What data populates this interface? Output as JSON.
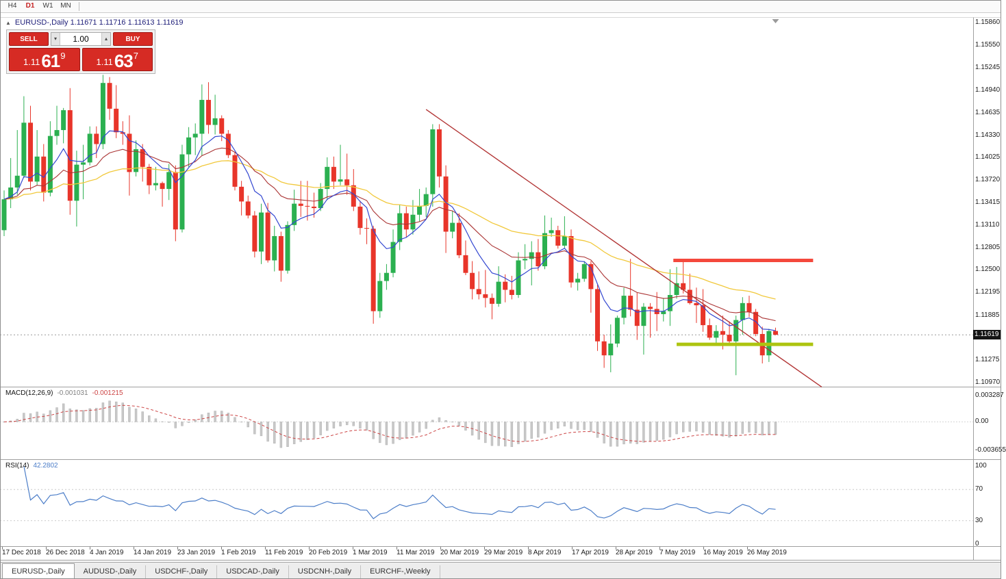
{
  "window": {
    "toolbar": {
      "timeframes": [
        {
          "label": "H4",
          "active": false
        },
        {
          "label": "D1",
          "active": true
        },
        {
          "label": "W1",
          "active": false
        },
        {
          "label": "MN",
          "active": false
        }
      ]
    },
    "tabs": {
      "items": [
        {
          "label": "EURUSD-,Daily",
          "active": true
        },
        {
          "label": "AUDUSD-,Daily",
          "active": false
        },
        {
          "label": "USDCHF-,Daily",
          "active": false
        },
        {
          "label": "USDCAD-,Daily",
          "active": false
        },
        {
          "label": "USDCNH-,Daily",
          "active": false
        },
        {
          "label": "EURCHF-,Weekly",
          "active": false
        }
      ]
    }
  },
  "chart": {
    "collapse_icon": "▲",
    "header": "EURUSD-,Daily 1.11671 1.11716 1.11613 1.11619",
    "trade_panel": {
      "sell_label": "SELL",
      "buy_label": "BUY",
      "volume": "1.00",
      "volume_down_icon": "▾",
      "volume_up_icon": "▴",
      "sell_price_main": "1.11",
      "sell_price_big": "61",
      "sell_price_sup": "9",
      "buy_price_main": "1.11",
      "buy_price_big": "63",
      "buy_price_sup": "7"
    },
    "price_axis_labels": [
      "1.15860",
      "1.15550",
      "1.15245",
      "1.14940",
      "1.14635",
      "1.14330",
      "1.14025",
      "1.13720",
      "1.13415",
      "1.13110",
      "1.12805",
      "1.12500",
      "1.12195",
      "1.11885",
      "1.11275",
      "1.10970"
    ],
    "current_price_tag": "1.11619"
  },
  "macd": {
    "label": "MACD(12,26,9)",
    "value1": "-0.001031",
    "value2": "-0.001215",
    "axis": [
      "0.003287",
      "0.00",
      "-0.003655"
    ]
  },
  "rsi": {
    "label": "RSI(14)",
    "value": "42.2802",
    "axis": [
      "100",
      "70",
      "30",
      "0"
    ]
  },
  "date_axis": [
    "17 Dec 2018",
    "26 Dec 2018",
    "4 Jan 2019",
    "14 Jan 2019",
    "23 Jan 2019",
    "1 Feb 2019",
    "11 Feb 2019",
    "20 Feb 2019",
    "1 Mar 2019",
    "11 Mar 2019",
    "20 Mar 2019",
    "29 Mar 2019",
    "8 Apr 2019",
    "17 Apr 2019",
    "28 Apr 2019",
    "7 May 2019",
    "16 May 2019",
    "26 May 2019"
  ],
  "chart_data": {
    "type": "candlestick",
    "symbol": "EURUSD-",
    "timeframe": "Daily",
    "ohlc": {
      "open": "1.11671",
      "high": "1.11716",
      "low": "1.11613",
      "close": "1.11619"
    },
    "ylim": [
      1.1097,
      1.1586
    ],
    "candles": [
      [
        1.1304,
        1.1358,
        1.1296,
        1.1346
      ],
      [
        1.1346,
        1.1402,
        1.1334,
        1.1362
      ],
      [
        1.1362,
        1.144,
        1.1352,
        1.1378
      ],
      [
        1.1378,
        1.1486,
        1.1375,
        1.145
      ],
      [
        1.145,
        1.1473,
        1.1358,
        1.137
      ],
      [
        1.137,
        1.144,
        1.1365,
        1.1404
      ],
      [
        1.1404,
        1.1421,
        1.1343,
        1.1355
      ],
      [
        1.1355,
        1.1452,
        1.135,
        1.1432
      ],
      [
        1.1432,
        1.1473,
        1.142,
        1.144
      ],
      [
        1.144,
        1.147,
        1.1422,
        1.1467
      ],
      [
        1.1467,
        1.1497,
        1.1325,
        1.1344
      ],
      [
        1.1344,
        1.1412,
        1.1309,
        1.1393
      ],
      [
        1.1393,
        1.142,
        1.1346,
        1.1396
      ],
      [
        1.1396,
        1.1445,
        1.1392,
        1.1435
      ],
      [
        1.1435,
        1.1445,
        1.1402,
        1.1421
      ],
      [
        1.1421,
        1.1515,
        1.1414,
        1.1504
      ],
      [
        1.1504,
        1.1512,
        1.1454,
        1.1469
      ],
      [
        1.1469,
        1.1501,
        1.1429,
        1.1437
      ],
      [
        1.1437,
        1.1452,
        1.142,
        1.1435
      ],
      [
        1.1435,
        1.146,
        1.1351,
        1.1383
      ],
      [
        1.1383,
        1.1426,
        1.1377,
        1.1414
      ],
      [
        1.1414,
        1.1421,
        1.137,
        1.139
      ],
      [
        1.139,
        1.1394,
        1.1353,
        1.1365
      ],
      [
        1.1365,
        1.139,
        1.1358,
        1.1368
      ],
      [
        1.1368,
        1.137,
        1.1336,
        1.136
      ],
      [
        1.136,
        1.1394,
        1.1345,
        1.1383
      ],
      [
        1.1383,
        1.1392,
        1.1289,
        1.1305
      ],
      [
        1.1305,
        1.142,
        1.1301,
        1.1407
      ],
      [
        1.1407,
        1.1444,
        1.139,
        1.143
      ],
      [
        1.143,
        1.1449,
        1.1406,
        1.1435
      ],
      [
        1.1435,
        1.1502,
        1.1405,
        1.1481
      ],
      [
        1.1481,
        1.1505,
        1.1435,
        1.1447
      ],
      [
        1.1447,
        1.1488,
        1.1434,
        1.1456
      ],
      [
        1.1456,
        1.146,
        1.1425,
        1.1435
      ],
      [
        1.1435,
        1.144,
        1.1402,
        1.1406
      ],
      [
        1.1406,
        1.141,
        1.1358,
        1.1363
      ],
      [
        1.1363,
        1.1371,
        1.1324,
        1.1343
      ],
      [
        1.1343,
        1.1351,
        1.132,
        1.1324
      ],
      [
        1.1324,
        1.133,
        1.1267,
        1.1275
      ],
      [
        1.1275,
        1.134,
        1.1258,
        1.1328
      ],
      [
        1.1328,
        1.1341,
        1.126,
        1.1263
      ],
      [
        1.1263,
        1.131,
        1.1248,
        1.1296
      ],
      [
        1.1296,
        1.1302,
        1.1234,
        1.1249
      ],
      [
        1.1249,
        1.1316,
        1.1245,
        1.1311
      ],
      [
        1.1311,
        1.1359,
        1.1303,
        1.134
      ],
      [
        1.134,
        1.1371,
        1.1322,
        1.1337
      ],
      [
        1.1337,
        1.1371,
        1.1317,
        1.1336
      ],
      [
        1.1336,
        1.1355,
        1.1321,
        1.1334
      ],
      [
        1.1334,
        1.1368,
        1.133,
        1.136
      ],
      [
        1.136,
        1.1403,
        1.1345,
        1.139
      ],
      [
        1.139,
        1.1404,
        1.136,
        1.137
      ],
      [
        1.137,
        1.142,
        1.1365,
        1.1373
      ],
      [
        1.1373,
        1.1408,
        1.1352,
        1.1365
      ],
      [
        1.1365,
        1.1387,
        1.133,
        1.1336
      ],
      [
        1.1336,
        1.1344,
        1.1298,
        1.1307
      ],
      [
        1.1307,
        1.132,
        1.1285,
        1.1306
      ],
      [
        1.1306,
        1.131,
        1.1177,
        1.1194
      ],
      [
        1.1194,
        1.1246,
        1.1185,
        1.1235
      ],
      [
        1.1235,
        1.1258,
        1.1223,
        1.1246
      ],
      [
        1.1246,
        1.1305,
        1.124,
        1.1288
      ],
      [
        1.1288,
        1.1339,
        1.1277,
        1.1327
      ],
      [
        1.1327,
        1.1336,
        1.1294,
        1.1305
      ],
      [
        1.1305,
        1.1345,
        1.1298,
        1.1325
      ],
      [
        1.1325,
        1.136,
        1.1316,
        1.1337
      ],
      [
        1.1337,
        1.1362,
        1.1322,
        1.1353
      ],
      [
        1.1353,
        1.1448,
        1.1336,
        1.1441
      ],
      [
        1.1441,
        1.1448,
        1.1362,
        1.1377
      ],
      [
        1.1377,
        1.1392,
        1.1273,
        1.1302
      ],
      [
        1.1302,
        1.133,
        1.1293,
        1.1314
      ],
      [
        1.1314,
        1.1327,
        1.1266,
        1.127
      ],
      [
        1.127,
        1.129,
        1.1243,
        1.1246
      ],
      [
        1.1246,
        1.1262,
        1.121,
        1.1224
      ],
      [
        1.1224,
        1.1248,
        1.121,
        1.1217
      ],
      [
        1.1217,
        1.125,
        1.1199,
        1.1212
      ],
      [
        1.1212,
        1.1218,
        1.1183,
        1.1204
      ],
      [
        1.1204,
        1.1255,
        1.12,
        1.1234
      ],
      [
        1.1234,
        1.1244,
        1.1206,
        1.1223
      ],
      [
        1.1223,
        1.1242,
        1.121,
        1.1216
      ],
      [
        1.1216,
        1.1274,
        1.1212,
        1.1263
      ],
      [
        1.1263,
        1.1285,
        1.1251,
        1.1265
      ],
      [
        1.1265,
        1.1289,
        1.1229,
        1.1274
      ],
      [
        1.1274,
        1.1292,
        1.1249,
        1.1255
      ],
      [
        1.1255,
        1.1324,
        1.1251,
        1.13
      ],
      [
        1.13,
        1.1321,
        1.1295,
        1.1304
      ],
      [
        1.1304,
        1.131,
        1.1279,
        1.1283
      ],
      [
        1.1283,
        1.1323,
        1.128,
        1.1296
      ],
      [
        1.1296,
        1.1305,
        1.1226,
        1.1233
      ],
      [
        1.1233,
        1.1246,
        1.1222,
        1.1238
      ],
      [
        1.1238,
        1.1262,
        1.1234,
        1.1258
      ],
      [
        1.1258,
        1.1262,
        1.1192,
        1.1224
      ],
      [
        1.1224,
        1.123,
        1.114,
        1.1153
      ],
      [
        1.1153,
        1.1162,
        1.1117,
        1.1134
      ],
      [
        1.1134,
        1.1176,
        1.1111,
        1.115
      ],
      [
        1.115,
        1.1188,
        1.1145,
        1.1185
      ],
      [
        1.1185,
        1.1226,
        1.1176,
        1.1215
      ],
      [
        1.1215,
        1.1265,
        1.1187,
        1.1196
      ],
      [
        1.1196,
        1.1219,
        1.1155,
        1.1174
      ],
      [
        1.1174,
        1.1205,
        1.1135,
        1.12
      ],
      [
        1.12,
        1.1205,
        1.1158,
        1.1197
      ],
      [
        1.1197,
        1.122,
        1.1167,
        1.119
      ],
      [
        1.119,
        1.1212,
        1.118,
        1.1194
      ],
      [
        1.1194,
        1.1251,
        1.1174,
        1.1216
      ],
      [
        1.1216,
        1.1254,
        1.1211,
        1.1232
      ],
      [
        1.1232,
        1.1264,
        1.1218,
        1.1223
      ],
      [
        1.1223,
        1.1245,
        1.1203,
        1.1205
      ],
      [
        1.1205,
        1.1226,
        1.1178,
        1.1202
      ],
      [
        1.1202,
        1.1224,
        1.1166,
        1.1175
      ],
      [
        1.1175,
        1.1184,
        1.1155,
        1.1158
      ],
      [
        1.1158,
        1.1175,
        1.115,
        1.1167
      ],
      [
        1.1167,
        1.1188,
        1.1142,
        1.1162
      ],
      [
        1.1162,
        1.118,
        1.1149,
        1.1153
      ],
      [
        1.1153,
        1.1188,
        1.1107,
        1.1182
      ],
      [
        1.1182,
        1.1213,
        1.1162,
        1.1205
      ],
      [
        1.1205,
        1.1215,
        1.1186,
        1.1193
      ],
      [
        1.1193,
        1.1197,
        1.116,
        1.1163
      ],
      [
        1.1163,
        1.1173,
        1.1123,
        1.1134
      ],
      [
        1.1134,
        1.117,
        1.1125,
        1.1167
      ],
      [
        1.11671,
        1.11716,
        1.11613,
        1.11619
      ]
    ],
    "overlays": {
      "ma_fast_period": 8,
      "ma_mid_period": 20,
      "ma_slow_period": 45,
      "trendline": {
        "i1": 64,
        "p1": 1.1468,
        "i2": 124,
        "p2": 1.1091
      },
      "resistance": {
        "price": 1.1263,
        "i1": 101.5,
        "i2": 122.7
      },
      "support": {
        "price": 1.1149,
        "i1": 102,
        "i2": 122.7
      },
      "current_price": 1.11619
    },
    "indicators": {
      "macd": {
        "fast": 12,
        "slow": 26,
        "signal": 9,
        "axis_max": 0.003287,
        "axis_min": -0.003655
      },
      "rsi": {
        "period": 14,
        "levels": [
          70,
          30
        ]
      }
    },
    "colors": {
      "up": "#2bb050",
      "down": "#e8352a",
      "ma_fast": "#3347d1",
      "ma_mid": "#aa3333",
      "ma_slow": "#f1c83a",
      "trend": "#b23535",
      "resistance": "#f4483c",
      "support": "#adc410",
      "rsi": "#4b7dc8",
      "macd_hist": "#c8c8c8",
      "macd_signal": "#cc4444",
      "price_line": "#999999",
      "tag_bg": "#151515",
      "trade_red": "#d62b24",
      "tf_active": "#c41e1e"
    }
  }
}
